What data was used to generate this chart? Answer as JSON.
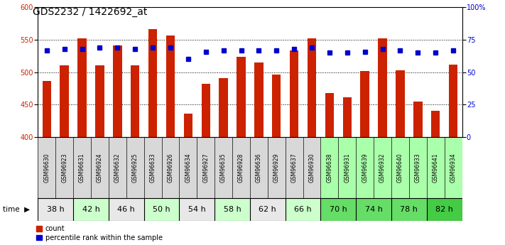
{
  "title": "GDS2232 / 1422692_at",
  "samples": [
    "GSM96630",
    "GSM96923",
    "GSM96631",
    "GSM96924",
    "GSM96632",
    "GSM96925",
    "GSM96633",
    "GSM96926",
    "GSM96634",
    "GSM96927",
    "GSM96635",
    "GSM96928",
    "GSM96636",
    "GSM96929",
    "GSM96637",
    "GSM96930",
    "GSM96638",
    "GSM96931",
    "GSM96639",
    "GSM96932",
    "GSM96640",
    "GSM96933",
    "GSM96641",
    "GSM96934"
  ],
  "counts": [
    487,
    511,
    552,
    511,
    541,
    511,
    567,
    557,
    436,
    482,
    491,
    524,
    515,
    496,
    534,
    552,
    468,
    462,
    502,
    552,
    503,
    455,
    441,
    512
  ],
  "percentiles": [
    67,
    68,
    68,
    69,
    69,
    68,
    69,
    69,
    60,
    66,
    67,
    67,
    67,
    67,
    68,
    69,
    65,
    65,
    66,
    68,
    67,
    65,
    65,
    67
  ],
  "time_groups": [
    {
      "label": "38 h",
      "n": 2,
      "bg": "#e8e8e8"
    },
    {
      "label": "42 h",
      "n": 2,
      "bg": "#ccffcc"
    },
    {
      "label": "46 h",
      "n": 2,
      "bg": "#e8e8e8"
    },
    {
      "label": "50 h",
      "n": 2,
      "bg": "#ccffcc"
    },
    {
      "label": "54 h",
      "n": 2,
      "bg": "#e8e8e8"
    },
    {
      "label": "58 h",
      "n": 2,
      "bg": "#ccffcc"
    },
    {
      "label": "62 h",
      "n": 2,
      "bg": "#e8e8e8"
    },
    {
      "label": "66 h",
      "n": 2,
      "bg": "#ccffcc"
    },
    {
      "label": "70 h",
      "n": 2,
      "bg": "#66dd66"
    },
    {
      "label": "74 h",
      "n": 2,
      "bg": "#66dd66"
    },
    {
      "label": "78 h",
      "n": 2,
      "bg": "#66dd66"
    },
    {
      "label": "82 h",
      "n": 2,
      "bg": "#44cc44"
    }
  ],
  "sample_bg_gray": "#d8d8d8",
  "sample_bg_green": "#aaffaa",
  "ylim_left": [
    400,
    600
  ],
  "ylim_right": [
    0,
    100
  ],
  "yticks_left": [
    400,
    450,
    500,
    550,
    600
  ],
  "yticks_right": [
    0,
    25,
    50,
    75,
    100
  ],
  "bar_color": "#cc2200",
  "dot_color": "#0000cc",
  "bar_bottom": 400,
  "bg_color": "#ffffff",
  "title_fontsize": 10,
  "tick_fontsize": 7,
  "sample_fontsize": 5.5,
  "time_fontsize": 8,
  "legend_fontsize": 7
}
